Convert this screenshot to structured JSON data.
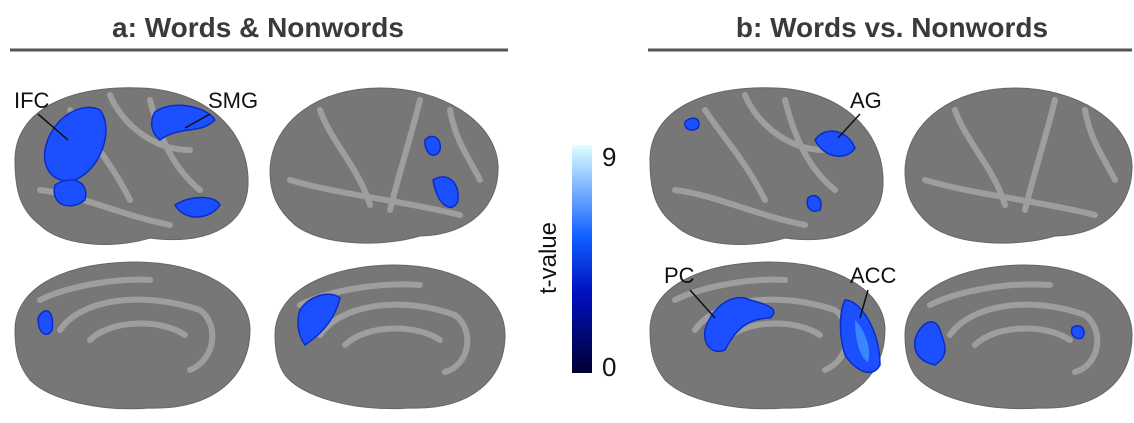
{
  "panels": [
    {
      "title": "a: Words & Nonwords",
      "labels": [
        "IFC",
        "SMG"
      ]
    },
    {
      "title": "b: Words vs. Nonwords",
      "labels": [
        "AG",
        "PC",
        "ACC"
      ]
    }
  ],
  "colorbar": {
    "label": "t-value",
    "max": "9",
    "min": "0"
  }
}
